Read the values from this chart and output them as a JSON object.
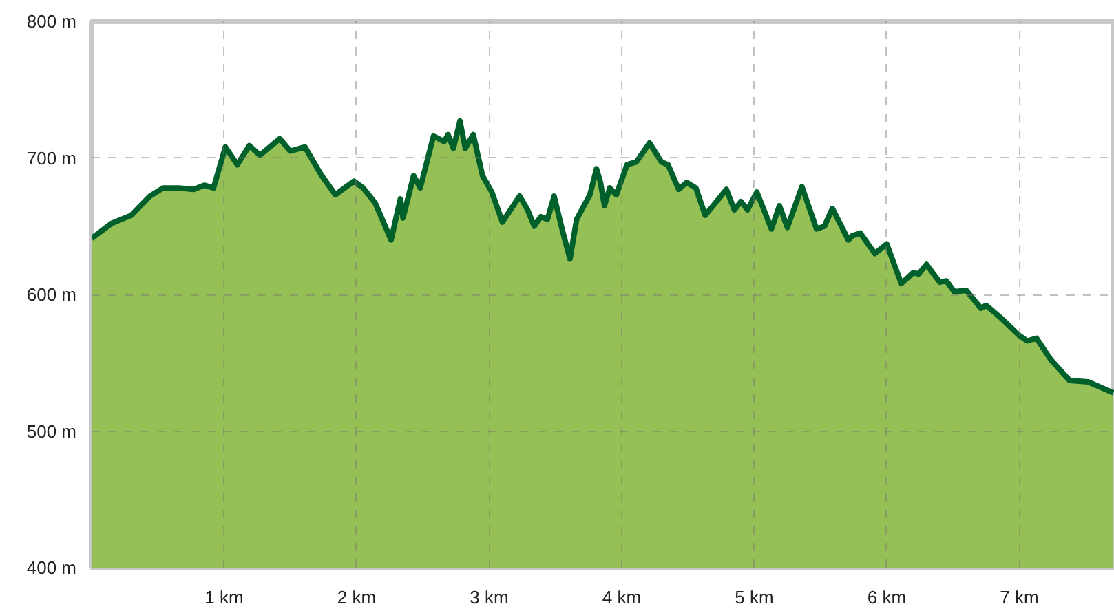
{
  "chart_data": {
    "type": "area",
    "x": [
      0,
      0.15,
      0.3,
      0.44,
      0.54,
      0.66,
      0.77,
      0.85,
      0.92,
      1.01,
      1.1,
      1.19,
      1.27,
      1.42,
      1.5,
      1.61,
      1.73,
      1.84,
      1.98,
      2.05,
      2.14,
      2.26,
      2.33,
      2.35,
      2.43,
      2.48,
      2.58,
      2.66,
      2.69,
      2.73,
      2.78,
      2.82,
      2.88,
      2.95,
      3.02,
      3.1,
      3.23,
      3.29,
      3.34,
      3.39,
      3.44,
      3.49,
      3.55,
      3.61,
      3.66,
      3.76,
      3.81,
      3.84,
      3.87,
      3.91,
      3.96,
      4.04,
      4.11,
      4.21,
      4.3,
      4.35,
      4.43,
      4.49,
      4.56,
      4.63,
      4.69,
      4.79,
      4.85,
      4.9,
      4.95,
      5.02,
      5.13,
      5.19,
      5.25,
      5.36,
      5.47,
      5.53,
      5.59,
      5.71,
      5.74,
      5.8,
      5.91,
      6.0,
      6.11,
      6.2,
      6.24,
      6.3,
      6.4,
      6.45,
      6.51,
      6.6,
      6.71,
      6.75,
      6.86,
      7.0,
      7.06,
      7.13,
      7.24,
      7.38,
      7.52,
      7.71
    ],
    "series": [
      {
        "color": "#95c055",
        "values": [
          641,
          652,
          658,
          672,
          678,
          678,
          677,
          680,
          678,
          708,
          695,
          709,
          702,
          714,
          705,
          708,
          688,
          673,
          683,
          678,
          667,
          640,
          670,
          656,
          687,
          678,
          716,
          712,
          717,
          707,
          727,
          707,
          717,
          687,
          675,
          653,
          672,
          662,
          650,
          657,
          655,
          672,
          648,
          626,
          655,
          673,
          692,
          682,
          665,
          678,
          673,
          695,
          697,
          711,
          697,
          695,
          677,
          682,
          678,
          658,
          665,
          677,
          662,
          668,
          662,
          675,
          648,
          665,
          649,
          679,
          648,
          650,
          663,
          640,
          643,
          645,
          630,
          637,
          608,
          616,
          615,
          622,
          609,
          610,
          602,
          603,
          590,
          592,
          583,
          570,
          566,
          568,
          552,
          537,
          536,
          528
        ]
      }
    ],
    "xlim": [
      0,
      7.72
    ],
    "ylim": [
      400,
      800
    ],
    "xticks": [
      {
        "value": 1,
        "label": "1 km"
      },
      {
        "value": 2,
        "label": "2 km"
      },
      {
        "value": 3,
        "label": "3 km"
      },
      {
        "value": 4,
        "label": "4 km"
      },
      {
        "value": 5,
        "label": "5 km"
      },
      {
        "value": 6,
        "label": "6 km"
      },
      {
        "value": 7,
        "label": "7 km"
      }
    ],
    "yticks": [
      {
        "value": 400,
        "label": "400 m"
      },
      {
        "value": 500,
        "label": "500 m"
      },
      {
        "value": 600,
        "label": "600 m"
      },
      {
        "value": 700,
        "label": "700 m"
      },
      {
        "value": 800,
        "label": "800 m"
      }
    ],
    "grid": true
  }
}
